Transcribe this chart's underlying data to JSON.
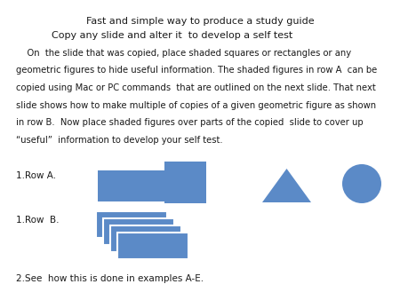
{
  "title_line1": "Fast and simple way to produce a study guide",
  "title_line2": "Copy any slide and alter it  to develop a self test",
  "body_line1": "    On  the slide that was copied, place shaded squares or rectangles or any",
  "body_line2": "geometric figures to hide useful information. The shaded figures in row A  can be",
  "body_line3": "copied using Mac or PC commands  that are outlined on the next slide. That next",
  "body_line4": "slide shows how to make multiple of copies of a given geometric figure as shown",
  "body_line5": "in row B.  Now place shaded figures over parts of the copied  slide to cover up",
  "body_line6": "“useful”  information to develop your self test.",
  "row_a_label": "1.Row A.",
  "row_b_label": "1.Row  B.",
  "footer_text": "2.See  how this is done in examples A-E.",
  "shape_color": "#5b8ac7",
  "background_color": "#ffffff",
  "text_color": "#1a1a1a",
  "font_size_title": 8.0,
  "font_size_body": 7.2,
  "font_size_label": 7.5
}
